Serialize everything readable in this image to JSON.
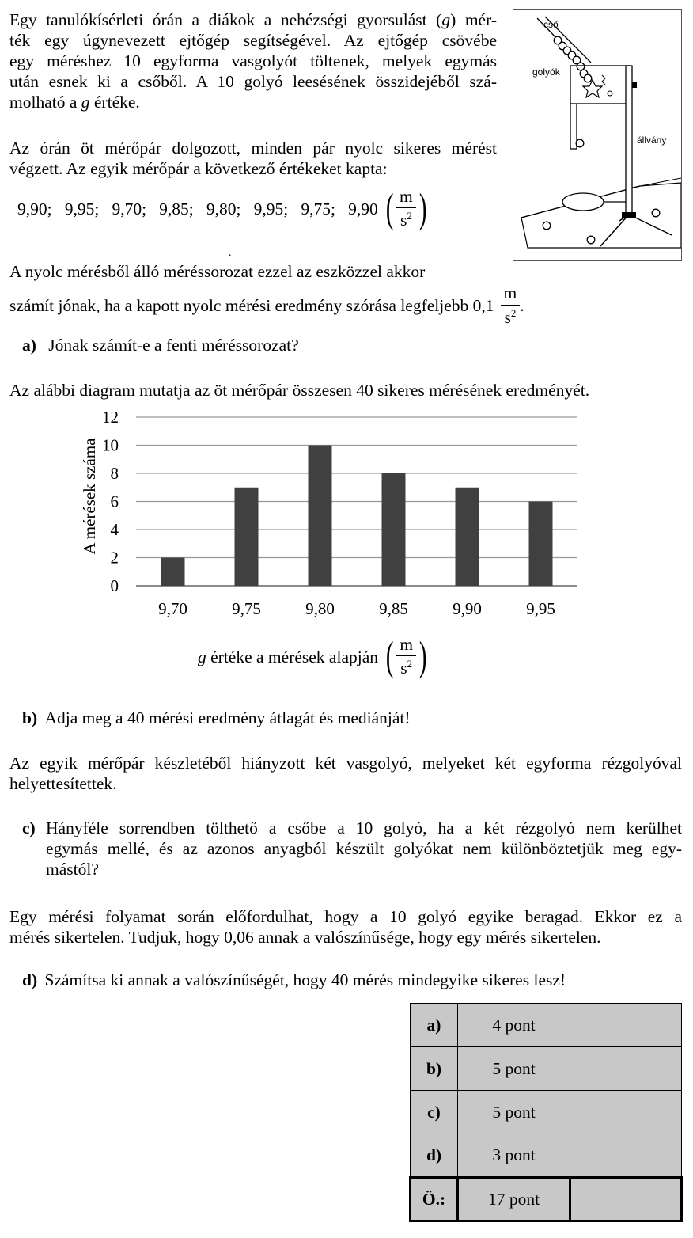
{
  "intro": {
    "lines": [
      "Egy tanulókísérleti órán a diákok a nehézségi gyorsulást (g) mér-",
      "ték egy úgynevezett ejtőgép segítségével. Az ejtőgép csövébe",
      "egy méréshez 10 egyforma vasgolyót töltenek, melyek egymás",
      "után esnek ki a csőből. A 10 golyó leesésének összidejéből szá-",
      "molható a g értéke."
    ]
  },
  "pairs": {
    "line1": "Az órán öt mérőpár dolgozott, minden pár nyolc sikeres mérést",
    "line2": "végzett. Az egyik mérőpár a következő értékeket kapta:"
  },
  "values_text": "9,90;   9,95;   9,70;   9,85;   9,80;   9,95;   9,75;   9,90",
  "unit": {
    "num": "m",
    "den": "s",
    "exp": "2"
  },
  "criterion": {
    "line1": "A nyolc mérésből álló méréssorozat ezzel az eszközzel akkor",
    "line2": "számít jónak, ha a kapott nyolc mérési eredmény szórása legfeljebb 0,1"
  },
  "qa": {
    "label": "a)",
    "text": "Jónak számít-e a fenti méréssorozat?"
  },
  "diagram_intro": "Az alábbi diagram mutatja az öt mérőpár összesen 40 sikeres mérésének eredményét.",
  "figure": {
    "label_tube": "cső",
    "label_balls": "golyók",
    "label_stand": "állvány"
  },
  "chart_data": {
    "type": "bar",
    "categories": [
      "9,70",
      "9,75",
      "9,80",
      "9,85",
      "9,90",
      "9,95"
    ],
    "values": [
      2,
      7,
      10,
      8,
      7,
      6
    ],
    "ylim": [
      0,
      12
    ],
    "yticks": [
      "0",
      "2",
      "4",
      "6",
      "8",
      "10",
      "12"
    ],
    "ylabel": "A mérések száma",
    "xlabel": "g értéke a mérések alapján",
    "bar_color": "#404040",
    "grid": true
  },
  "qb": {
    "label": "b)",
    "text": "Adja meg a 40 mérési eredmény átlagát és mediánját!"
  },
  "missing": {
    "line1": "Az egyik mérőpár készletéből hiányzott két vasgolyó, melyeket két egyforma rézgolyóval",
    "line2": "helyettesítettek."
  },
  "qc": {
    "label": "c)",
    "line1": "Hányféle sorrendben tölthető a csőbe a 10 golyó, ha a két rézgolyó nem kerülhet",
    "line2": "egymás mellé, és az azonos anyagból készült golyókat nem különböztetjük meg egy-",
    "line3": "mástól?"
  },
  "failure": {
    "line1": "Egy mérési folyamat során előfordulhat, hogy a 10 golyó egyike beragad. Ekkor ez a",
    "line2": "mérés sikertelen. Tudjuk, hogy 0,06 annak a valószínűsége, hogy egy mérés sikertelen."
  },
  "qd": {
    "label": "d)",
    "text": "Számítsa ki annak a valószínűségét, hogy 40 mérés mindegyike sikeres lesz!"
  },
  "score_table": {
    "rows": [
      {
        "label": "a)",
        "points": "4 pont",
        "earned": ""
      },
      {
        "label": "b)",
        "points": "5 pont",
        "earned": ""
      },
      {
        "label": "c)",
        "points": "5 pont",
        "earned": ""
      },
      {
        "label": "d)",
        "points": "3 pont",
        "earned": ""
      }
    ],
    "total": {
      "label": "Ö.:",
      "points": "17 pont",
      "earned": ""
    }
  }
}
